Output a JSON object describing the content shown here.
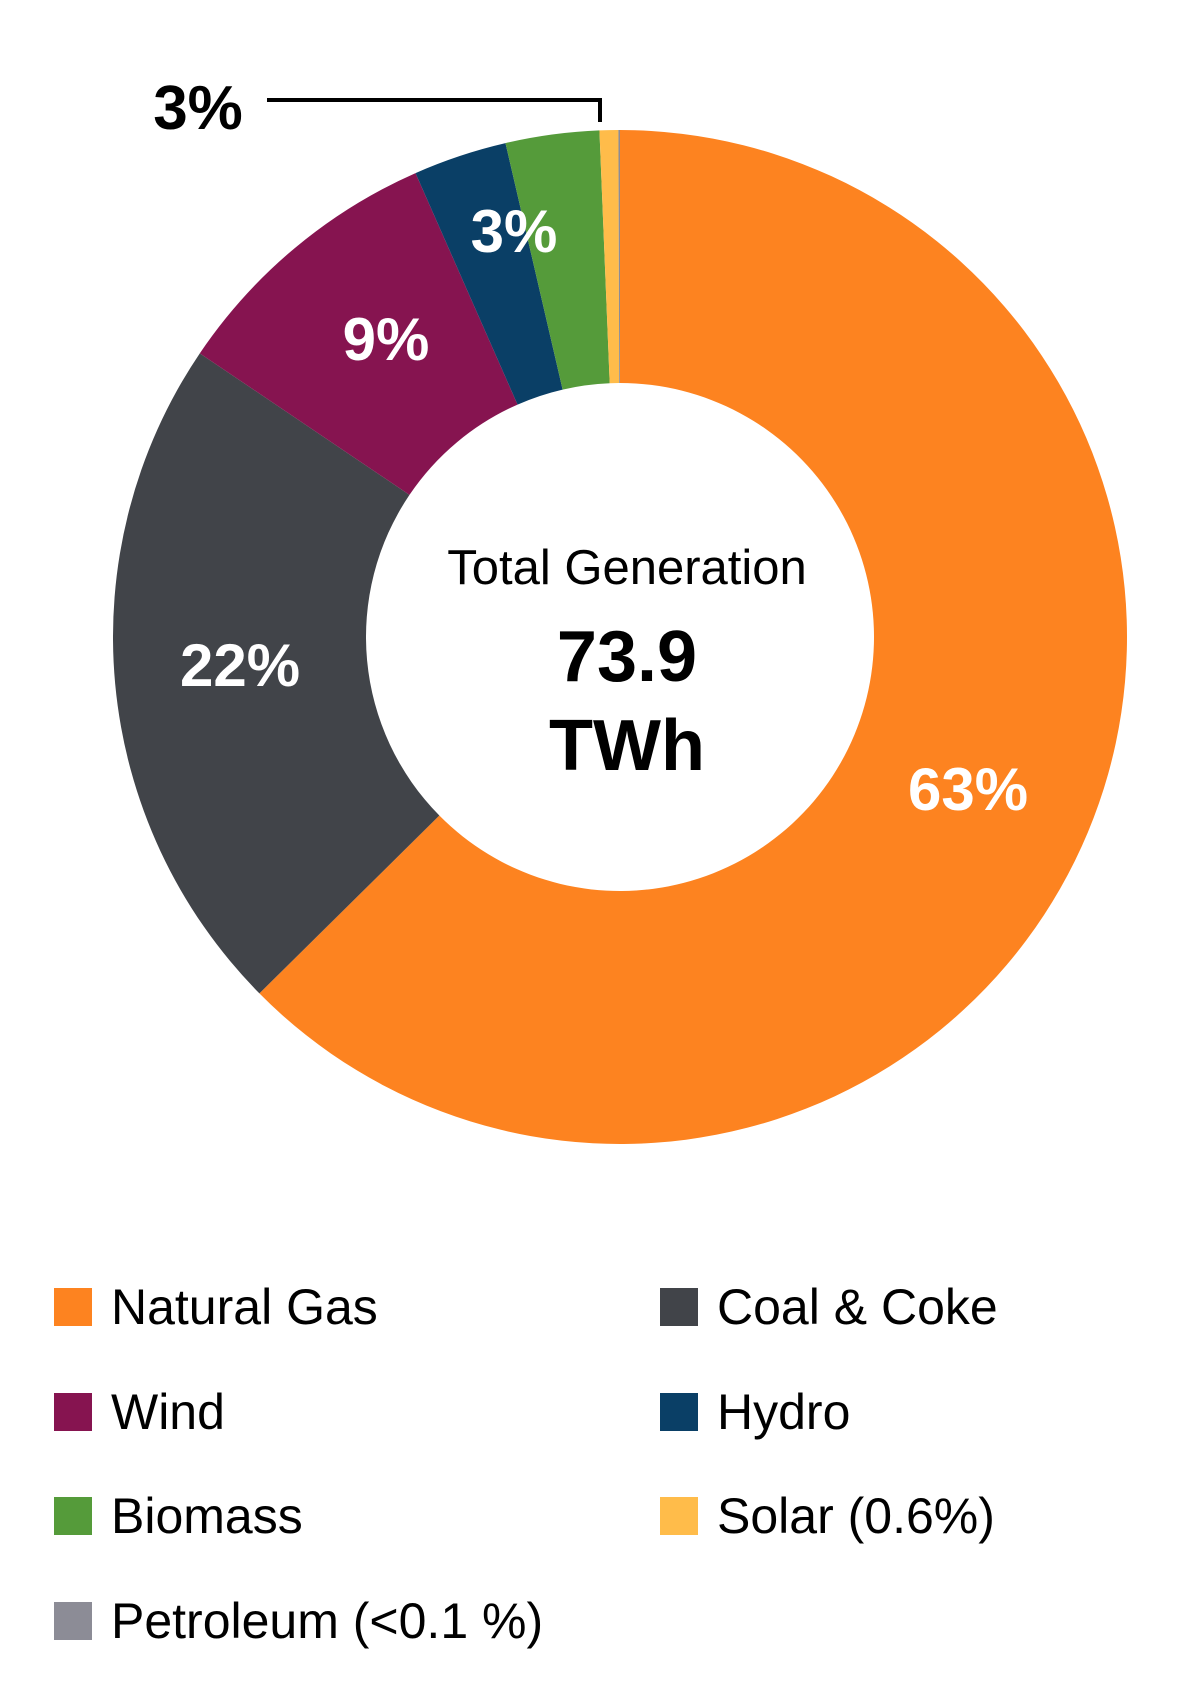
{
  "chart_data": {
    "type": "pie",
    "variant": "donut",
    "center_label": {
      "title": "Total Generation",
      "value": "73.9",
      "unit": "TWh"
    },
    "slices": [
      {
        "name": "Natural Gas",
        "value": 63,
        "label": "63%",
        "color": "#FD8320"
      },
      {
        "name": "Coal & Coke",
        "value": 22,
        "label": "22%",
        "color": "#414449"
      },
      {
        "name": "Wind",
        "value": 9,
        "label": "9%",
        "color": "#861450"
      },
      {
        "name": "Hydro",
        "value": 3,
        "label": "3%",
        "color": "#0A3F66"
      },
      {
        "name": "Biomass",
        "value": 3,
        "label": "3%",
        "color": "#559B3A"
      },
      {
        "name": "Solar",
        "value": 0.6,
        "label": "",
        "color": "#FFBC4A"
      },
      {
        "name": "Petroleum",
        "value": 0.05,
        "label": "",
        "color": "#8C8C96"
      }
    ],
    "callout_label": "3%",
    "legend": {
      "placement": "bottom",
      "items": [
        {
          "label": "Natural Gas",
          "color": "#FD8320"
        },
        {
          "label": "Coal & Coke",
          "color": "#414449"
        },
        {
          "label": "Wind",
          "color": "#861450"
        },
        {
          "label": "Hydro",
          "color": "#0A3F66"
        },
        {
          "label": "Biomass",
          "color": "#559B3A"
        },
        {
          "label": "Solar (0.6%)",
          "color": "#FFBC4A"
        },
        {
          "label": "Petroleum (<0.1 %)",
          "color": "#8C8C96"
        }
      ]
    }
  }
}
